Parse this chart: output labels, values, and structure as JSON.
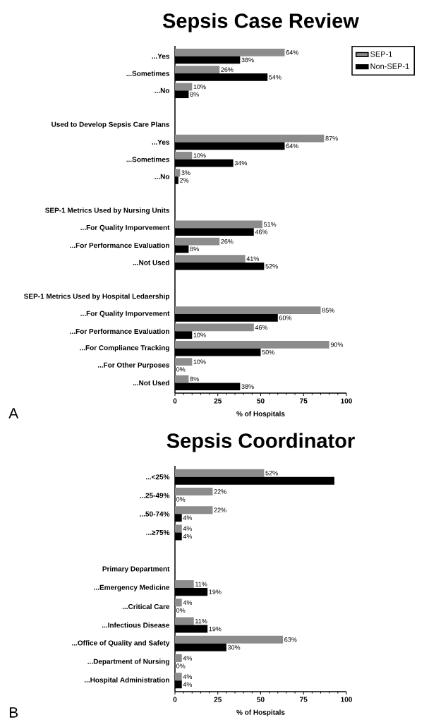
{
  "chart_data": [
    {
      "type": "bar",
      "orientation": "horizontal",
      "title": "Sepsis Case Review",
      "xlabel": "% of Hospitals",
      "categories": [
        "...Yes",
        "...Sometimes",
        "...No",
        null,
        "Used to Develop Sepsis Care Plans",
        "...Yes",
        "...Sometimes",
        "...No",
        null,
        "SEP-1 Metrics Used by Nursing Units",
        "...For Quality Imporvement",
        "...For Performance Evaluation",
        "...Not Used",
        null,
        "SEP-1 Metrics Used by Hospital Ledaership",
        "...For Quality Imporvement",
        "...For Performance Evaluation",
        "...For Compliance Tracking",
        "...For Other Purposes",
        "...Not Used"
      ],
      "series": [
        {
          "name": "SEP-1",
          "color": "#8c8c8c",
          "values": [
            64,
            26,
            10,
            null,
            null,
            87,
            10,
            3,
            null,
            null,
            51,
            26,
            41,
            null,
            null,
            85,
            46,
            90,
            10,
            8
          ],
          "value_labels": [
            "64%",
            "26%",
            "10%",
            null,
            null,
            "87%",
            "10%",
            "3%",
            null,
            null,
            "51%",
            "26%",
            "41%",
            null,
            null,
            "85%",
            "46%",
            "90%",
            "10%",
            "8%"
          ]
        },
        {
          "name": "Non-SEP-1",
          "color": "#000000",
          "values": [
            38,
            54,
            8,
            null,
            null,
            64,
            34,
            2,
            null,
            null,
            46,
            8,
            52,
            null,
            null,
            60,
            10,
            50,
            0,
            38
          ],
          "value_labels": [
            "38%",
            "54%",
            "8%",
            null,
            null,
            "64%",
            "34%",
            "2%",
            null,
            null,
            "46%",
            "8%",
            "52%",
            null,
            null,
            "60%",
            "10%",
            "50%",
            "0%",
            "38%"
          ]
        }
      ],
      "xlim": [
        0,
        100
      ],
      "xticks": [
        0,
        25,
        50,
        75,
        100
      ],
      "legend": "top right",
      "annotations": [
        "A"
      ]
    },
    {
      "type": "bar",
      "orientation": "horizontal",
      "title": "Sepsis Coordinator",
      "xlabel": "% of Hospitals",
      "categories": [
        "...<25%",
        "...25-49%",
        "...50-74%",
        "...≥75%",
        null,
        "Primary Department",
        "...Emergency Medicine",
        "...Critical Care",
        "...Infectious Disease",
        "...Office of Quality and Safety",
        "...Department of Nursing",
        "...Hospital Administration"
      ],
      "series": [
        {
          "color": "#8c8c8c",
          "values": [
            52,
            22,
            22,
            4,
            null,
            null,
            11,
            4,
            11,
            63,
            4,
            4
          ],
          "value_labels": [
            "52%",
            "22%",
            "22%",
            "4%",
            null,
            null,
            "11%",
            "4%",
            "11%",
            "63%",
            "4%",
            "4%"
          ]
        },
        {
          "color": "#000000",
          "values": [
            93,
            0,
            4,
            4,
            null,
            null,
            19,
            0,
            19,
            30,
            0,
            4
          ],
          "value_labels": [
            null,
            "0%",
            "4%",
            "4%",
            null,
            null,
            "19%",
            "0%",
            "19%",
            "30%",
            "0%",
            "4%"
          ]
        }
      ],
      "xlim": [
        0,
        100
      ],
      "xticks": [
        0,
        25,
        50,
        75,
        100
      ],
      "legend": false,
      "annotations": [
        "B"
      ]
    }
  ]
}
